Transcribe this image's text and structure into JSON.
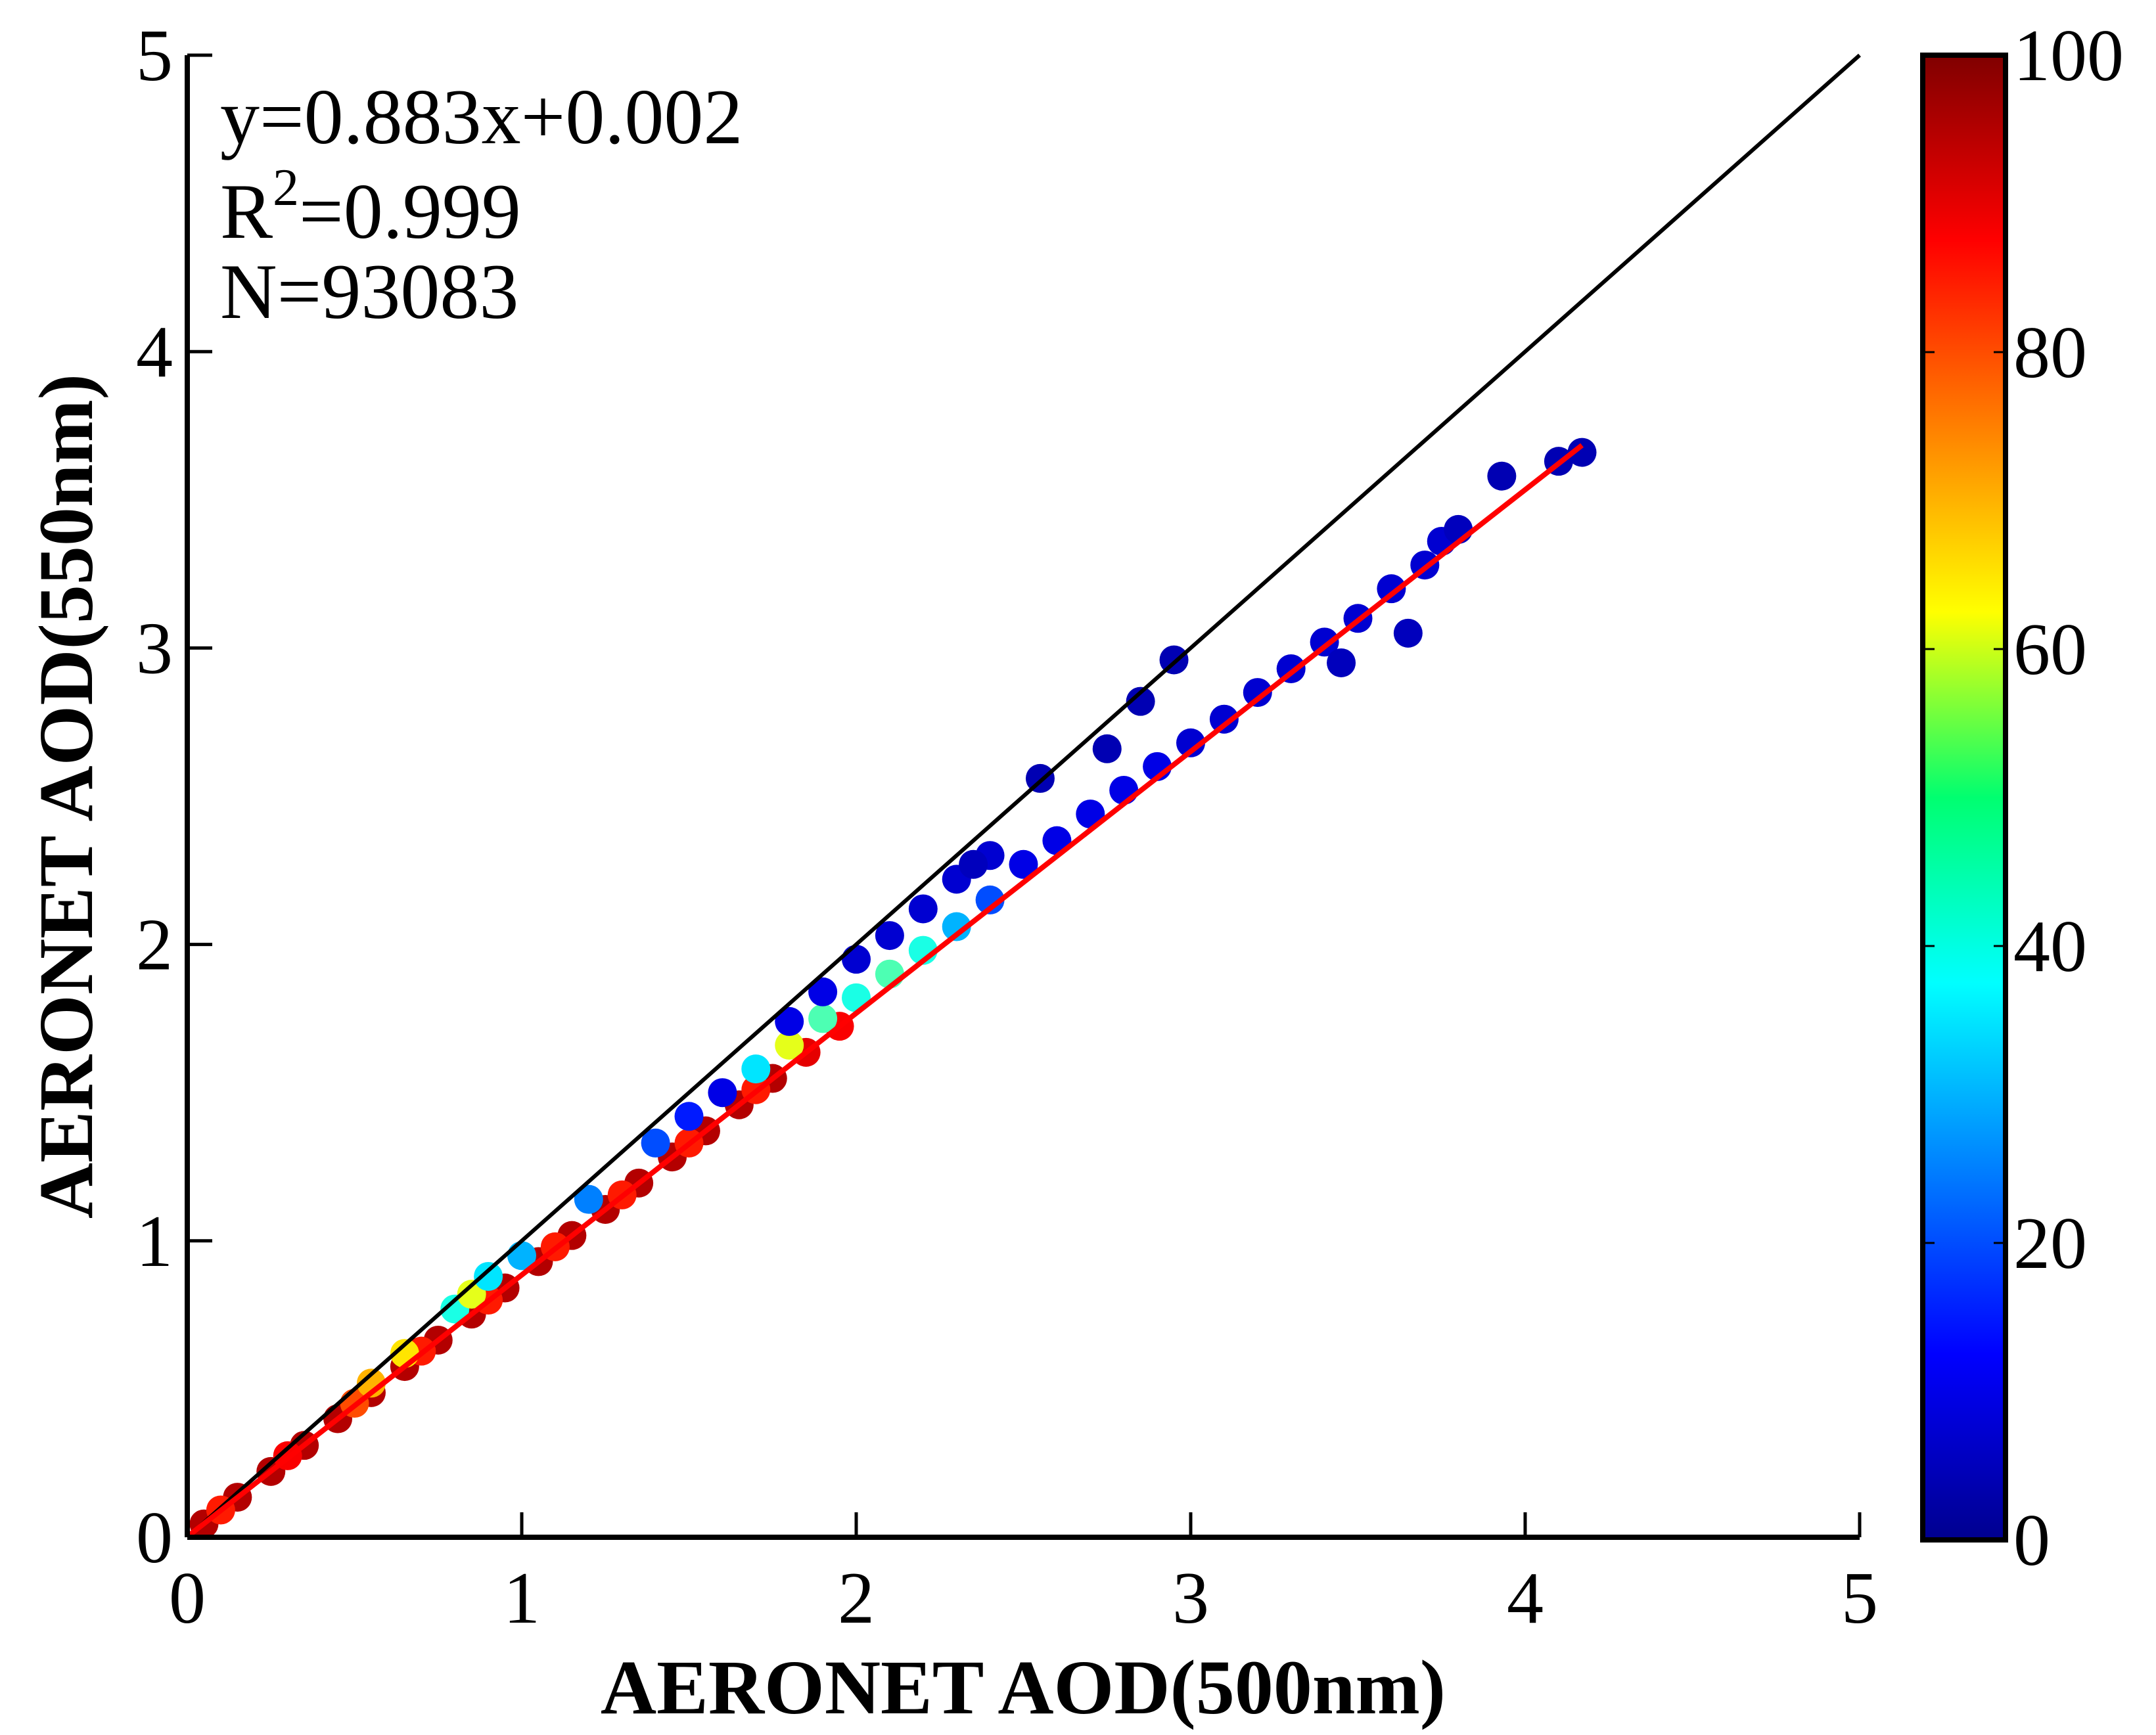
{
  "chart_data": {
    "type": "scatter",
    "xlabel": "AERONET AOD(500nm)",
    "ylabel": "AERONET AOD(550nm)",
    "xlim": [
      0,
      5
    ],
    "ylim": [
      0,
      5
    ],
    "xticks": [
      "0",
      "1",
      "2",
      "3",
      "4",
      "5"
    ],
    "yticks": [
      "0",
      "1",
      "2",
      "3",
      "4",
      "5"
    ],
    "grid": false,
    "annotations": {
      "equation": "y=0.883x+0.002",
      "r2_prefix": "R",
      "r2_sup": "2",
      "r2_value": "=0.999",
      "n": "N=93083"
    },
    "fit_line": {
      "slope": 0.883,
      "intercept": 0.002,
      "x_range": [
        0,
        4.17
      ],
      "color": "#ff0000"
    },
    "reference_line": {
      "slope": 1,
      "intercept": 0,
      "x_range": [
        0,
        5
      ],
      "color": "#000000"
    },
    "colorbar": {
      "colormap": "jet",
      "range": [
        0,
        100
      ],
      "ticks": [
        "0",
        "20",
        "40",
        "60",
        "80",
        "100"
      ]
    },
    "points_xyc": [
      [
        0.05,
        0.045,
        95
      ],
      [
        0.15,
        0.135,
        95
      ],
      [
        0.25,
        0.222,
        95
      ],
      [
        0.35,
        0.31,
        95
      ],
      [
        0.45,
        0.4,
        95
      ],
      [
        0.55,
        0.488,
        95
      ],
      [
        0.65,
        0.576,
        95
      ],
      [
        0.75,
        0.665,
        95
      ],
      [
        0.85,
        0.753,
        95
      ],
      [
        0.95,
        0.841,
        95
      ],
      [
        1.05,
        0.93,
        95
      ],
      [
        1.15,
        1.018,
        95
      ],
      [
        1.25,
        1.106,
        95
      ],
      [
        1.35,
        1.195,
        95
      ],
      [
        1.45,
        1.283,
        95
      ],
      [
        1.55,
        1.371,
        95
      ],
      [
        1.65,
        1.459,
        95
      ],
      [
        1.75,
        1.548,
        95
      ],
      [
        1.85,
        1.636,
        90
      ],
      [
        1.95,
        1.724,
        88
      ],
      [
        0.1,
        0.092,
        85
      ],
      [
        0.3,
        0.275,
        88
      ],
      [
        0.5,
        0.452,
        80
      ],
      [
        0.7,
        0.628,
        85
      ],
      [
        0.9,
        0.8,
        85
      ],
      [
        1.1,
        0.98,
        85
      ],
      [
        1.3,
        1.155,
        85
      ],
      [
        1.5,
        1.33,
        85
      ],
      [
        1.7,
        1.51,
        85
      ],
      [
        0.55,
        0.52,
        70
      ],
      [
        0.65,
        0.62,
        65
      ],
      [
        0.8,
        0.77,
        40
      ],
      [
        0.85,
        0.82,
        60
      ],
      [
        0.9,
        0.88,
        35
      ],
      [
        1.0,
        0.95,
        30
      ],
      [
        1.2,
        1.14,
        25
      ],
      [
        1.4,
        1.33,
        20
      ],
      [
        1.5,
        1.42,
        15
      ],
      [
        1.6,
        1.5,
        10
      ],
      [
        1.7,
        1.58,
        35
      ],
      [
        1.8,
        1.66,
        60
      ],
      [
        1.9,
        1.75,
        45
      ],
      [
        2.0,
        1.82,
        40
      ],
      [
        2.1,
        1.9,
        45
      ],
      [
        2.2,
        1.98,
        40
      ],
      [
        2.3,
        2.06,
        30
      ],
      [
        2.4,
        2.15,
        20
      ],
      [
        1.8,
        1.74,
        10
      ],
      [
        1.9,
        1.84,
        10
      ],
      [
        2.0,
        1.95,
        8
      ],
      [
        2.1,
        2.03,
        8
      ],
      [
        2.2,
        2.12,
        8
      ],
      [
        2.3,
        2.22,
        8
      ],
      [
        2.4,
        2.3,
        8
      ],
      [
        2.5,
        2.27,
        10
      ],
      [
        2.6,
        2.35,
        10
      ],
      [
        2.7,
        2.44,
        10
      ],
      [
        2.8,
        2.52,
        10
      ],
      [
        2.9,
        2.6,
        10
      ],
      [
        3.0,
        2.68,
        8
      ],
      [
        3.1,
        2.76,
        8
      ],
      [
        3.2,
        2.85,
        8
      ],
      [
        3.3,
        2.93,
        8
      ],
      [
        3.4,
        3.02,
        8
      ],
      [
        3.5,
        3.1,
        8
      ],
      [
        3.6,
        3.2,
        8
      ],
      [
        3.7,
        3.28,
        8
      ],
      [
        3.75,
        3.36,
        8
      ],
      [
        3.8,
        3.4,
        6
      ],
      [
        2.35,
        2.27,
        6
      ],
      [
        2.55,
        2.56,
        5
      ],
      [
        2.75,
        2.66,
        5
      ],
      [
        2.85,
        2.82,
        5
      ],
      [
        2.95,
        2.96,
        5
      ],
      [
        3.45,
        2.95,
        6
      ],
      [
        3.65,
        3.05,
        6
      ],
      [
        3.93,
        3.58,
        5
      ],
      [
        4.1,
        3.63,
        5
      ],
      [
        4.17,
        3.66,
        5
      ]
    ]
  }
}
